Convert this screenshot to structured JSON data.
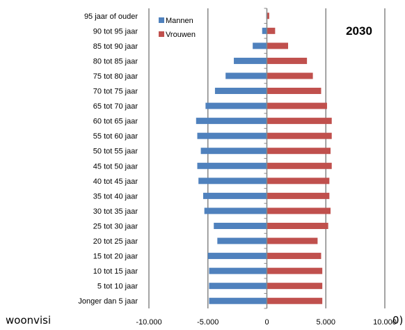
{
  "footer": {
    "text": "woonvisi",
    "tail": "0)"
  },
  "chart_data": {
    "type": "bar",
    "orientation": "horizontal",
    "title": "2030",
    "categories": [
      "95 jaar of ouder",
      "90 tot 95 jaar",
      "85 tot 90 jaar",
      "80 tot 85 jaar",
      "75 tot 80 jaar",
      "70 tot 75 jaar",
      "65 tot 70 jaar",
      "60 tot 65 jaar",
      "55 tot 60 jaar",
      "50 tot 55 jaar",
      "45 tot 50 jaar",
      "40 tot 45 jaar",
      "35 tot 40 jaar",
      "30 tot 35 jaar",
      "25 tot 30 jaar",
      "20 tot 25 jaar",
      "15 tot 20 jaar",
      "10 tot 15 jaar",
      "5 tot 10 jaar",
      "Jonger dan 5 jaar"
    ],
    "series": [
      {
        "name": "Mannen",
        "color": "#4f81bd",
        "values": [
          -50,
          -400,
          -1200,
          -2800,
          -3500,
          -4400,
          -5200,
          -6000,
          -5900,
          -5600,
          -5900,
          -5800,
          -5400,
          -5300,
          -4500,
          -4200,
          -5000,
          -4900,
          -4900,
          -4900
        ]
      },
      {
        "name": "Vrouwen",
        "color": "#c0504d",
        "values": [
          200,
          700,
          1800,
          3400,
          3900,
          4600,
          5100,
          5500,
          5500,
          5400,
          5500,
          5300,
          5300,
          5400,
          5200,
          4300,
          4600,
          4700,
          4700,
          4700
        ]
      }
    ],
    "xlim": [
      -10000,
      10000
    ],
    "xticks": [
      "-10.000",
      "-5.000",
      "0",
      "5.000",
      "10.000"
    ],
    "xtick_values": [
      -10000,
      -5000,
      0,
      5000,
      10000
    ],
    "gridlines": "vertical",
    "legend_position": "top-left"
  }
}
